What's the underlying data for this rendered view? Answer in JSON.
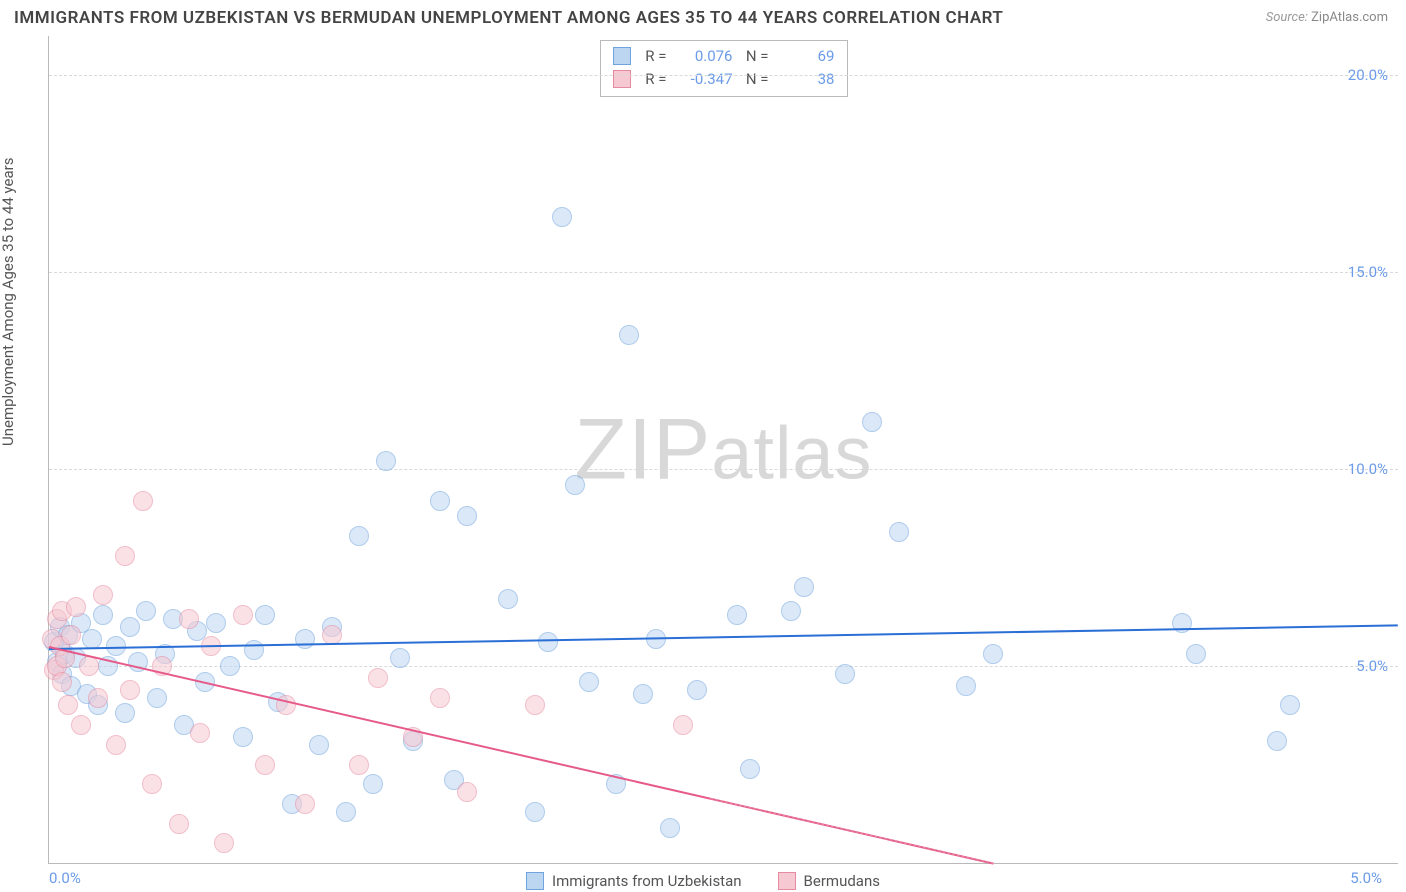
{
  "title": "IMMIGRANTS FROM UZBEKISTAN VS BERMUDAN UNEMPLOYMENT AMONG AGES 35 TO 44 YEARS CORRELATION CHART",
  "source_label": "Source:",
  "source_value": "ZipAtlas.com",
  "watermark": "ZIPatlas",
  "chart": {
    "type": "scatter",
    "ylabel": "Unemployment Among Ages 35 to 44 years",
    "xlim": [
      0.0,
      5.0
    ],
    "ylim": [
      0.0,
      21.0
    ],
    "yticks": [
      5.0,
      10.0,
      15.0,
      20.0
    ],
    "ytick_labels": [
      "5.0%",
      "10.0%",
      "15.0%",
      "20.0%"
    ],
    "xtick_left": "0.0%",
    "xtick_right": "5.0%",
    "grid_color": "#d9d9d9",
    "axis_color": "#b9b9b9",
    "background_color": "#ffffff",
    "marker_radius": 10,
    "marker_opacity": 0.55,
    "label_fontsize": 15,
    "title_fontsize": 17,
    "series": [
      {
        "name": "Immigrants from Uzbekistan",
        "key": "uzbekistan",
        "color_fill": "#bcd6f2",
        "color_stroke": "#6fa3de",
        "trend_color": "#2a6fd6",
        "R": "0.076",
        "N": "69",
        "trend": {
          "x1": 0.0,
          "y1": 5.45,
          "x2": 5.0,
          "y2": 6.05
        },
        "points": [
          [
            0.02,
            5.6
          ],
          [
            0.03,
            5.1
          ],
          [
            0.04,
            6.0
          ],
          [
            0.05,
            4.8
          ],
          [
            0.06,
            5.3
          ],
          [
            0.07,
            5.8
          ],
          [
            0.08,
            4.5
          ],
          [
            0.1,
            5.2
          ],
          [
            0.12,
            6.1
          ],
          [
            0.14,
            4.3
          ],
          [
            0.16,
            5.7
          ],
          [
            0.18,
            4.0
          ],
          [
            0.2,
            6.3
          ],
          [
            0.22,
            5.0
          ],
          [
            0.25,
            5.5
          ],
          [
            0.28,
            3.8
          ],
          [
            0.3,
            6.0
          ],
          [
            0.33,
            5.1
          ],
          [
            0.36,
            6.4
          ],
          [
            0.4,
            4.2
          ],
          [
            0.43,
            5.3
          ],
          [
            0.46,
            6.2
          ],
          [
            0.5,
            3.5
          ],
          [
            0.55,
            5.9
          ],
          [
            0.58,
            4.6
          ],
          [
            0.62,
            6.1
          ],
          [
            0.67,
            5.0
          ],
          [
            0.72,
            3.2
          ],
          [
            0.76,
            5.4
          ],
          [
            0.8,
            6.3
          ],
          [
            0.85,
            4.1
          ],
          [
            0.9,
            1.5
          ],
          [
            0.95,
            5.7
          ],
          [
            1.0,
            3.0
          ],
          [
            1.05,
            6.0
          ],
          [
            1.1,
            1.3
          ],
          [
            1.15,
            8.3
          ],
          [
            1.2,
            2.0
          ],
          [
            1.25,
            10.2
          ],
          [
            1.3,
            5.2
          ],
          [
            1.35,
            3.1
          ],
          [
            1.45,
            9.2
          ],
          [
            1.5,
            2.1
          ],
          [
            1.55,
            8.8
          ],
          [
            1.7,
            6.7
          ],
          [
            1.8,
            1.3
          ],
          [
            1.85,
            5.6
          ],
          [
            1.9,
            16.4
          ],
          [
            1.95,
            9.6
          ],
          [
            2.0,
            4.6
          ],
          [
            2.1,
            2.0
          ],
          [
            2.15,
            13.4
          ],
          [
            2.2,
            4.3
          ],
          [
            2.25,
            5.7
          ],
          [
            2.3,
            0.9
          ],
          [
            2.4,
            4.4
          ],
          [
            2.55,
            6.3
          ],
          [
            2.6,
            2.4
          ],
          [
            2.75,
            6.4
          ],
          [
            2.8,
            7.0
          ],
          [
            2.95,
            4.8
          ],
          [
            3.05,
            11.2
          ],
          [
            3.15,
            8.4
          ],
          [
            3.4,
            4.5
          ],
          [
            3.5,
            5.3
          ],
          [
            4.2,
            6.1
          ],
          [
            4.25,
            5.3
          ],
          [
            4.55,
            3.1
          ],
          [
            4.6,
            4.0
          ]
        ]
      },
      {
        "name": "Bermudans",
        "key": "bermudans",
        "color_fill": "#f6c9d2",
        "color_stroke": "#e68aa0",
        "trend_color": "#e65a8a",
        "R": "-0.347",
        "N": "38",
        "trend": {
          "x1": 0.0,
          "y1": 5.5,
          "x2": 3.5,
          "y2": 0.0
        },
        "trend_dash": {
          "x1": 2.45,
          "y1": 1.65,
          "x2": 3.5,
          "y2": 0.0
        },
        "points": [
          [
            0.01,
            5.7
          ],
          [
            0.02,
            4.9
          ],
          [
            0.03,
            6.2
          ],
          [
            0.03,
            5.0
          ],
          [
            0.04,
            5.5
          ],
          [
            0.05,
            4.6
          ],
          [
            0.05,
            6.4
          ],
          [
            0.06,
            5.2
          ],
          [
            0.07,
            4.0
          ],
          [
            0.08,
            5.8
          ],
          [
            0.1,
            6.5
          ],
          [
            0.12,
            3.5
          ],
          [
            0.15,
            5.0
          ],
          [
            0.18,
            4.2
          ],
          [
            0.2,
            6.8
          ],
          [
            0.25,
            3.0
          ],
          [
            0.28,
            7.8
          ],
          [
            0.3,
            4.4
          ],
          [
            0.35,
            9.2
          ],
          [
            0.38,
            2.0
          ],
          [
            0.42,
            5.0
          ],
          [
            0.48,
            1.0
          ],
          [
            0.52,
            6.2
          ],
          [
            0.56,
            3.3
          ],
          [
            0.6,
            5.5
          ],
          [
            0.65,
            0.5
          ],
          [
            0.72,
            6.3
          ],
          [
            0.8,
            2.5
          ],
          [
            0.88,
            4.0
          ],
          [
            0.95,
            1.5
          ],
          [
            1.05,
            5.8
          ],
          [
            1.15,
            2.5
          ],
          [
            1.22,
            4.7
          ],
          [
            1.35,
            3.2
          ],
          [
            1.45,
            4.2
          ],
          [
            1.55,
            1.8
          ],
          [
            1.8,
            4.0
          ],
          [
            2.35,
            3.5
          ]
        ]
      }
    ]
  },
  "bottom_legend": [
    {
      "key": "uzbekistan",
      "label": "Immigrants from Uzbekistan"
    },
    {
      "key": "bermudans",
      "label": "Bermudans"
    }
  ]
}
